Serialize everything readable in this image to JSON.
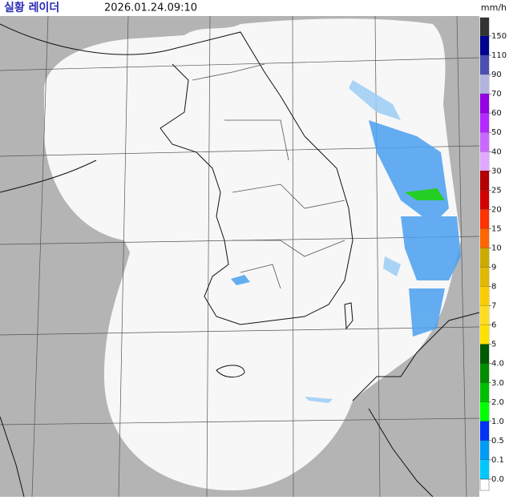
{
  "header": {
    "title": "실황 레이더",
    "time": "2026.01.24.09:10",
    "unit": "mm/h"
  },
  "legend": {
    "items": [
      {
        "label": "150",
        "color": "#333333"
      },
      {
        "label": "110",
        "color": "#000390"
      },
      {
        "label": "90",
        "color": "#4c4eb1"
      },
      {
        "label": "70",
        "color": "#b3b4de"
      },
      {
        "label": "60",
        "color": "#9300e4"
      },
      {
        "label": "50",
        "color": "#b329ff"
      },
      {
        "label": "40",
        "color": "#c969ff"
      },
      {
        "label": "30",
        "color": "#e0a9ff"
      },
      {
        "label": "25",
        "color": "#b40000"
      },
      {
        "label": "20",
        "color": "#d20000"
      },
      {
        "label": "15",
        "color": "#ff3200"
      },
      {
        "label": "10",
        "color": "#ff6600"
      },
      {
        "label": "9",
        "color": "#ccaa00"
      },
      {
        "label": "8",
        "color": "#e0b900"
      },
      {
        "label": "7",
        "color": "#f9cd00"
      },
      {
        "label": "6",
        "color": "#ffdc1f"
      },
      {
        "label": "5",
        "color": "#ffe100"
      },
      {
        "label": "4.0",
        "color": "#005a00"
      },
      {
        "label": "3.0",
        "color": "#008c00"
      },
      {
        "label": "2.0",
        "color": "#00be00"
      },
      {
        "label": "1.0",
        "color": "#00ff00"
      },
      {
        "label": "0.5",
        "color": "#0033f5"
      },
      {
        "label": "0.1",
        "color": "#009bf5"
      },
      {
        "label": "0.0",
        "color": "#00c8ff"
      }
    ]
  }
}
